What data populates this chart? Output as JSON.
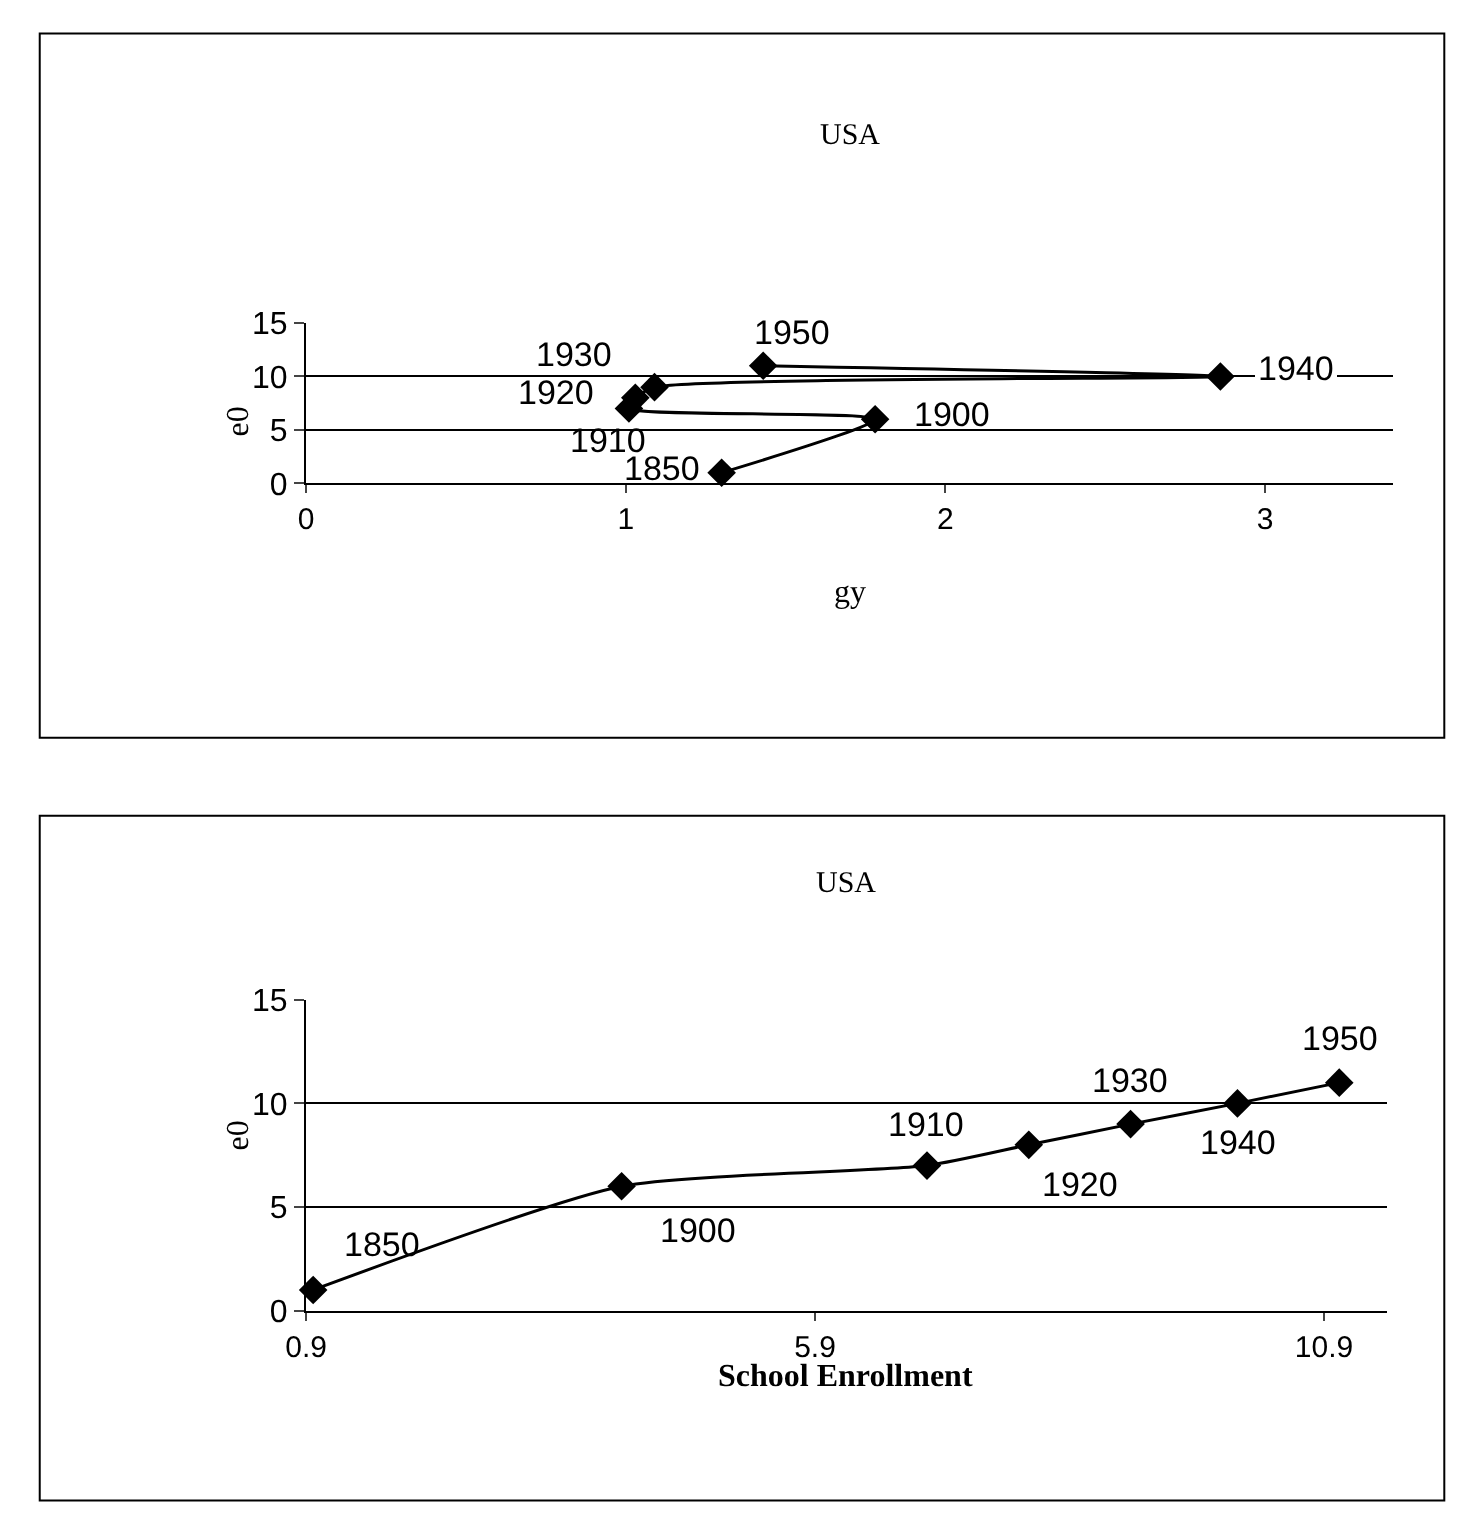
{
  "chart_data": [
    {
      "type": "line",
      "title": "USA",
      "xlabel": "gy",
      "ylabel": "e0",
      "xlim": [
        0,
        3.4
      ],
      "xticks": [
        0,
        1,
        2,
        3
      ],
      "ylim": [
        0,
        15
      ],
      "yticks": [
        0,
        5,
        10,
        15
      ],
      "grid": "y",
      "marker": "diamond",
      "line_style": "solid",
      "series": [
        {
          "color": "#000000",
          "x": [
            1.3,
            1.78,
            1.01,
            1.03,
            1.09,
            2.86,
            1.43
          ],
          "values": [
            1,
            6,
            7,
            8,
            9,
            10,
            11
          ]
        }
      ],
      "annotations": [
        {
          "text": "1850",
          "x": 1.3,
          "y": 1
        },
        {
          "text": "1900",
          "x": 1.78,
          "y": 6
        },
        {
          "text": "1910",
          "x": 1.01,
          "y": 7
        },
        {
          "text": "1920",
          "x": 1.03,
          "y": 8
        },
        {
          "text": "1930",
          "x": 1.09,
          "y": 9
        },
        {
          "text": "1940",
          "x": 2.86,
          "y": 10
        },
        {
          "text": "1950",
          "x": 1.43,
          "y": 11
        }
      ]
    },
    {
      "type": "line",
      "title": "USA",
      "xlabel": "School Enrollment",
      "ylabel": "e0",
      "xlim": [
        0.9,
        11.52
      ],
      "xticks": [
        0.9,
        5.9,
        10.9
      ],
      "ylim": [
        0,
        15
      ],
      "yticks": [
        0,
        5,
        10,
        15
      ],
      "grid": "y",
      "marker": "diamond",
      "line_style": "solid",
      "series": [
        {
          "color": "#000000",
          "x": [
            0.97,
            4.0,
            7.0,
            8.0,
            9.0,
            10.05,
            11.05
          ],
          "values": [
            1,
            6,
            7,
            8,
            9,
            10,
            11
          ]
        }
      ],
      "annotations": [
        {
          "text": "1850",
          "x": 0.97,
          "y": 1
        },
        {
          "text": "1900",
          "x": 4.0,
          "y": 6
        },
        {
          "text": "1910",
          "x": 7.0,
          "y": 7
        },
        {
          "text": "1920",
          "x": 8.0,
          "y": 8
        },
        {
          "text": "1930",
          "x": 9.0,
          "y": 9
        },
        {
          "text": "1940",
          "x": 10.05,
          "y": 10
        },
        {
          "text": "1950",
          "x": 11.05,
          "y": 11
        }
      ]
    }
  ]
}
